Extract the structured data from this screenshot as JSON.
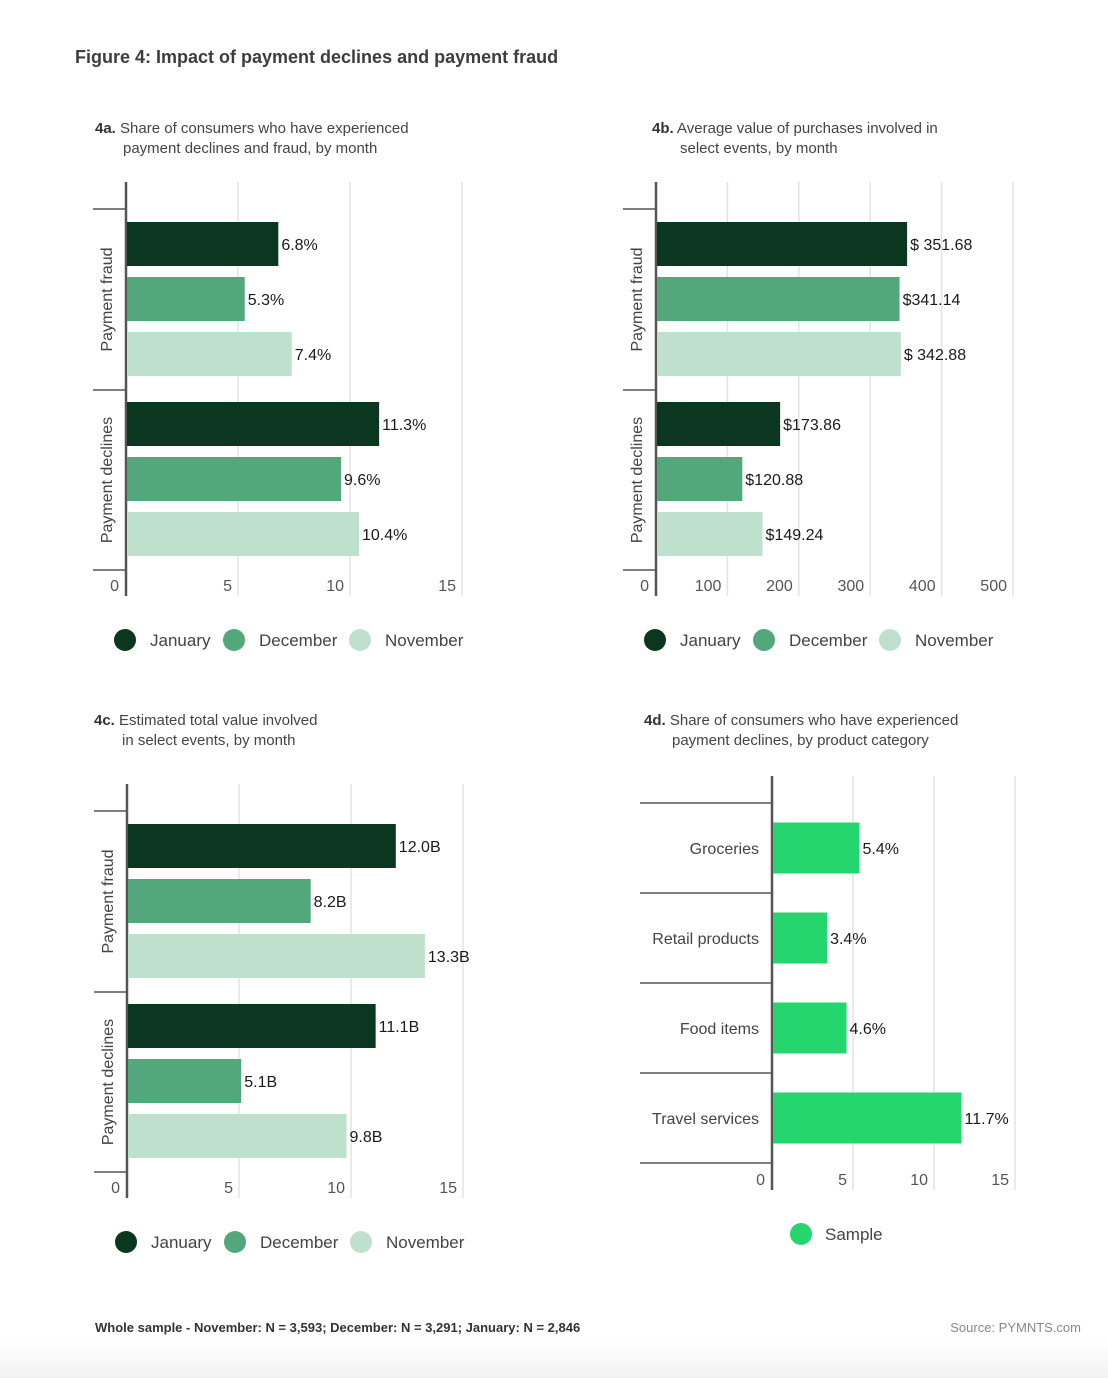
{
  "figure_title": "Figure 4: Impact of payment declines and payment fraud",
  "footer": {
    "note": "Whole sample - November: N = 3,593; December: N = 3,291; January: N = 2,846",
    "source": "Source: PYMNTS.com"
  },
  "colors": {
    "january": "#0b3620",
    "december": "#52a87a",
    "november": "#bfe0cd",
    "sample": "#25d56e",
    "axis": "#555555",
    "grid": "#e3e3e3"
  },
  "chart_data": [
    {
      "id": "4a",
      "type": "bar",
      "orientation": "horizontal",
      "title_prefix": "4a.",
      "title_line1": "Share of consumers who have experienced",
      "title_line2": "payment declines and fraud, by month",
      "categories": [
        "Payment fraud",
        "Payment declines"
      ],
      "series": [
        {
          "name": "January",
          "color_key": "january",
          "values": [
            6.8,
            11.3
          ],
          "labels": [
            "6.8%",
            "11.3%"
          ]
        },
        {
          "name": "December",
          "color_key": "december",
          "values": [
            5.3,
            9.6
          ],
          "labels": [
            "5.3%",
            "9.6%"
          ]
        },
        {
          "name": "November",
          "color_key": "november",
          "values": [
            7.4,
            10.4
          ],
          "labels": [
            "7.4%",
            "10.4%"
          ]
        }
      ],
      "xlim": [
        0,
        15
      ],
      "ticks": [
        "0",
        "5",
        "10",
        "15"
      ],
      "tick_values": [
        0,
        5,
        10,
        15
      ],
      "grid": true,
      "legend": [
        "January",
        "December",
        "November"
      ],
      "legend_position": "bottom"
    },
    {
      "id": "4b",
      "type": "bar",
      "orientation": "horizontal",
      "title_prefix": "4b.",
      "title_line1": "Average value of purchases involved in",
      "title_line2": "select events, by month",
      "categories": [
        "Payment fraud",
        "Payment declines"
      ],
      "series": [
        {
          "name": "January",
          "color_key": "january",
          "values": [
            351.68,
            173.86
          ],
          "labels": [
            "$ 351.68",
            "$173.86"
          ]
        },
        {
          "name": "December",
          "color_key": "december",
          "values": [
            341.14,
            120.88
          ],
          "labels": [
            "$341.14",
            "$120.88"
          ]
        },
        {
          "name": "November",
          "color_key": "november",
          "values": [
            342.88,
            149.24
          ],
          "labels": [
            "$ 342.88",
            "$149.24"
          ]
        }
      ],
      "xlim": [
        0,
        500
      ],
      "ticks": [
        "0",
        "100",
        "200",
        "300",
        "400",
        "500"
      ],
      "tick_values": [
        0,
        100,
        200,
        300,
        400,
        500
      ],
      "grid": true,
      "legend": [
        "January",
        "December",
        "November"
      ],
      "legend_position": "bottom"
    },
    {
      "id": "4c",
      "type": "bar",
      "orientation": "horizontal",
      "title_prefix": "4c.",
      "title_line1": "Estimated total value involved",
      "title_line2": "in select events, by month",
      "categories": [
        "Payment fraud",
        "Payment declines"
      ],
      "series": [
        {
          "name": "January",
          "color_key": "january",
          "values": [
            12.0,
            11.1
          ],
          "labels": [
            "12.0B",
            "11.1B"
          ]
        },
        {
          "name": "December",
          "color_key": "december",
          "values": [
            8.2,
            5.1
          ],
          "labels": [
            "8.2B",
            "5.1B"
          ]
        },
        {
          "name": "November",
          "color_key": "november",
          "values": [
            13.3,
            9.8
          ],
          "labels": [
            "13.3B",
            "9.8B"
          ]
        }
      ],
      "xlim": [
        0,
        15
      ],
      "ticks": [
        "0",
        "5",
        "10",
        "15"
      ],
      "tick_values": [
        0,
        5,
        10,
        15
      ],
      "grid": true,
      "legend": [
        "January",
        "December",
        "November"
      ],
      "legend_position": "bottom"
    },
    {
      "id": "4d",
      "type": "bar",
      "orientation": "horizontal",
      "title_prefix": "4d.",
      "title_line1": "Share of consumers who have experienced",
      "title_line2": "payment declines, by product category",
      "categories": [
        "Groceries",
        "Retail products",
        "Food items",
        "Travel services"
      ],
      "series": [
        {
          "name": "Sample",
          "color_key": "sample",
          "values": [
            5.4,
            3.4,
            4.6,
            11.7
          ],
          "labels": [
            "5.4%",
            "3.4%",
            "4.6%",
            "11.7%"
          ]
        }
      ],
      "xlim": [
        0,
        15
      ],
      "ticks": [
        "0",
        "5",
        "10",
        "15"
      ],
      "tick_values": [
        0,
        5,
        10,
        15
      ],
      "grid": true,
      "legend": [
        "Sample"
      ],
      "legend_position": "bottom"
    }
  ]
}
